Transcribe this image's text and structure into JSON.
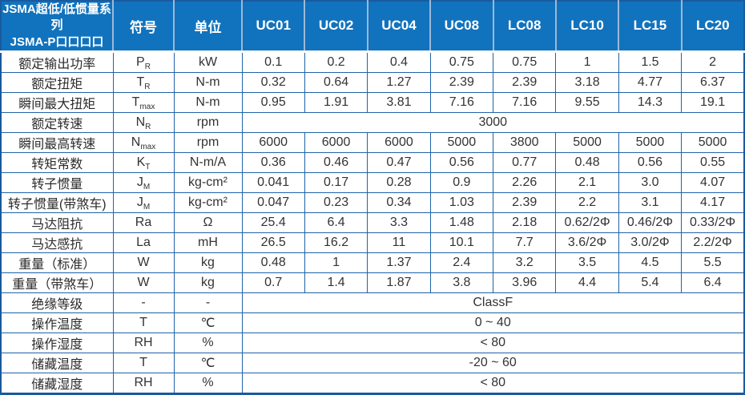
{
  "header": {
    "title_line1": "JSMA超低/低惯量系列",
    "title_line2": "JSMA-P口口口口",
    "symbol_col": "符号",
    "unit_col": "单位",
    "models": [
      "UC01",
      "UC02",
      "UC04",
      "UC08",
      "LC08",
      "LC10",
      "LC15",
      "LC20"
    ]
  },
  "rows": [
    {
      "label": "额定输出功率",
      "sym": "P",
      "sub": "R",
      "unit": "kW",
      "values": [
        "0.1",
        "0.2",
        "0.4",
        "0.75",
        "0.75",
        "1",
        "1.5",
        "2"
      ]
    },
    {
      "label": "额定扭矩",
      "sym": "T",
      "sub": "R",
      "unit": "N-m",
      "values": [
        "0.32",
        "0.64",
        "1.27",
        "2.39",
        "2.39",
        "3.18",
        "4.77",
        "6.37"
      ]
    },
    {
      "label": "瞬间最大扭矩",
      "sym": "T",
      "sub": "max",
      "unit": "N-m",
      "values": [
        "0.95",
        "1.91",
        "3.81",
        "7.16",
        "7.16",
        "9.55",
        "14.3",
        "19.1"
      ]
    },
    {
      "label": "额定转速",
      "sym": "N",
      "sub": "R",
      "unit": "rpm",
      "merged": "3000"
    },
    {
      "label": "瞬间最高转速",
      "sym": "N",
      "sub": "max",
      "unit": "rpm",
      "values": [
        "6000",
        "6000",
        "6000",
        "5000",
        "3800",
        "5000",
        "5000",
        "5000"
      ]
    },
    {
      "label": "转矩常数",
      "sym": "K",
      "sub": "T",
      "unit": "N-m/A",
      "values": [
        "0.36",
        "0.46",
        "0.47",
        "0.56",
        "0.77",
        "0.48",
        "0.56",
        "0.55"
      ]
    },
    {
      "label": "转子惯量",
      "sym": "J",
      "sub": "M",
      "unit": "kg-cm²",
      "values": [
        "0.041",
        "0.17",
        "0.28",
        "0.9",
        "2.26",
        "2.1",
        "3.0",
        "4.07"
      ]
    },
    {
      "label": "转子惯量(带煞车)",
      "sym": "J",
      "sub": "M",
      "unit": "kg-cm²",
      "values": [
        "0.047",
        "0.23",
        "0.34",
        "1.03",
        "2.39",
        "2.2",
        "3.1",
        "4.17"
      ]
    },
    {
      "label": "马达阻抗",
      "sym": "Ra",
      "sub": "",
      "unit": "Ω",
      "values": [
        "25.4",
        "6.4",
        "3.3",
        "1.48",
        "2.18",
        "0.62/2Φ",
        "0.46/2Φ",
        "0.33/2Φ"
      ]
    },
    {
      "label": "马达感抗",
      "sym": "La",
      "sub": "",
      "unit": "mH",
      "values": [
        "26.5",
        "16.2",
        "11",
        "10.1",
        "7.7",
        "3.6/2Φ",
        "3.0/2Φ",
        "2.2/2Φ"
      ]
    },
    {
      "label": "重量（标准）",
      "sym": "W",
      "sub": "",
      "unit": "kg",
      "values": [
        "0.48",
        "1",
        "1.37",
        "2.4",
        "3.2",
        "3.5",
        "4.5",
        "5.5"
      ]
    },
    {
      "label": "重量（带煞车）",
      "sym": "W",
      "sub": "",
      "unit": "kg",
      "values": [
        "0.7",
        "1.4",
        "1.87",
        "3.8",
        "3.96",
        "4.4",
        "5.4",
        "6.4"
      ]
    },
    {
      "label": "绝缘等级",
      "sym": "-",
      "sub": "",
      "unit": "-",
      "merged": "ClassF"
    },
    {
      "label": "操作温度",
      "sym": "T",
      "sub": "",
      "unit": "℃",
      "merged": "0 ~ 40"
    },
    {
      "label": "操作湿度",
      "sym": "RH",
      "sub": "",
      "unit": "%",
      "merged": "< 80"
    },
    {
      "label": "储藏温度",
      "sym": "T",
      "sub": "",
      "unit": "℃",
      "merged": "-20 ~ 60"
    },
    {
      "label": "储藏湿度",
      "sym": "RH",
      "sub": "",
      "unit": "%",
      "merged": "< 80"
    }
  ],
  "colors": {
    "header_bg": "#1173be",
    "header_divider": "#9db8d8",
    "grid": "#2163a8",
    "outer_border": "#1a5a9e",
    "body_text": "#333333"
  }
}
